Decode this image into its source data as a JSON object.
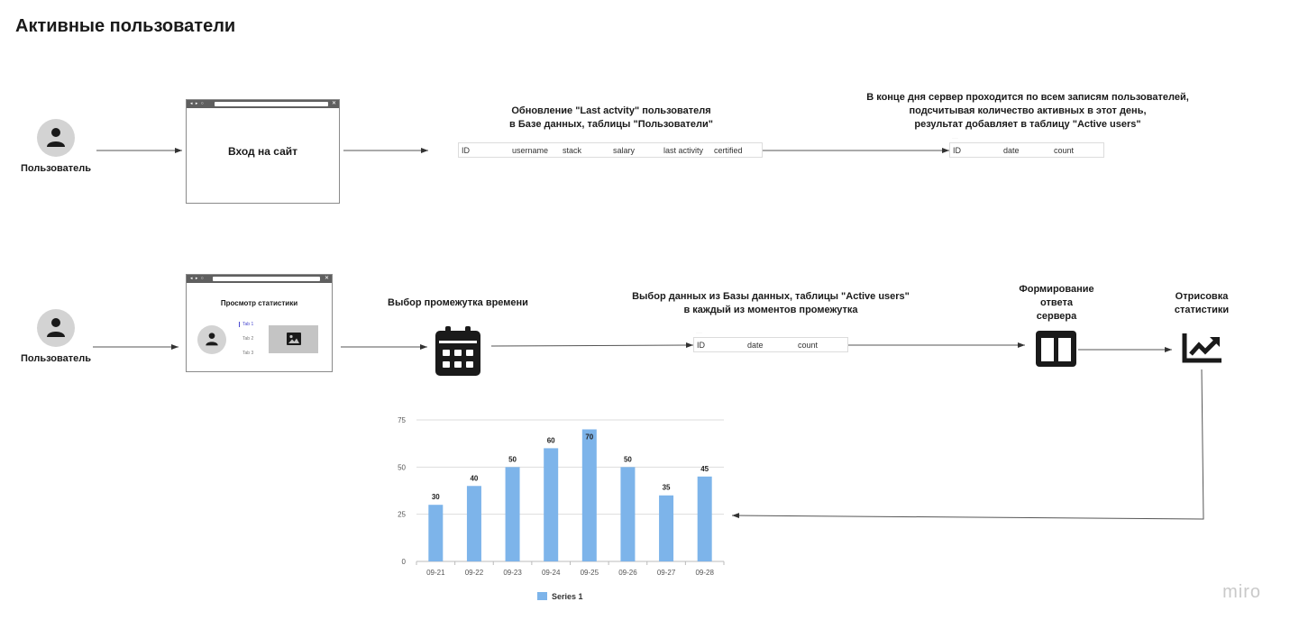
{
  "page": {
    "title": "Активные пользователи"
  },
  "flow1": {
    "user_label": "Пользователь",
    "window_title": "Вход на сайт",
    "update_note_line1": "Обновление \"Last actvity\" пользователя",
    "update_note_line2": "в Базе данных, таблицы \"Пользователи\"",
    "users_table_columns": [
      "ID",
      "username",
      "stack",
      "salary",
      "last activity",
      "certified"
    ],
    "server_note_line1": "В конце дня сервер проходится по всем записям пользователей,",
    "server_note_line2": "подсчитывая количество активных в этот день,",
    "server_note_line3": "результат добавляет в таблицу \"Active users\"",
    "active_table_columns": [
      "ID",
      "date",
      "count"
    ]
  },
  "flow2": {
    "user_label": "Пользователь",
    "window_title": "Просмотр статистики",
    "tabs": [
      "Tab 1",
      "Tab 2",
      "Tab 3"
    ],
    "period_label": "Выбор промежутка времени",
    "select_note_line1": "Выбор данных из Базы данных, таблицы \"Active users\"",
    "select_note_line2": "в каждый из моментов промежутка",
    "active_table_columns": [
      "ID",
      "date",
      "count"
    ],
    "response_line1": "Формирование",
    "response_line2": "ответа",
    "response_line3": "сервера",
    "render_line1": "Отрисовка",
    "render_line2": "статистики"
  },
  "icons": {
    "user": "user-icon",
    "calendar": "calendar-icon",
    "layout": "layout-columns-icon",
    "trend": "trending-up-icon",
    "image": "image-icon"
  },
  "chart_data": {
    "type": "bar",
    "categories": [
      "09-21",
      "09-22",
      "09-23",
      "09-24",
      "09-25",
      "09-26",
      "09-27",
      "09-28"
    ],
    "series": [
      {
        "name": "Series 1",
        "values": [
          30,
          40,
          50,
          60,
          70,
          50,
          35,
          45
        ],
        "color": "#7db4ea"
      }
    ],
    "yticks": [
      0,
      25,
      50,
      75
    ],
    "ylim": [
      0,
      75
    ],
    "grid": true,
    "legend": "bottom"
  },
  "watermark": "miro"
}
